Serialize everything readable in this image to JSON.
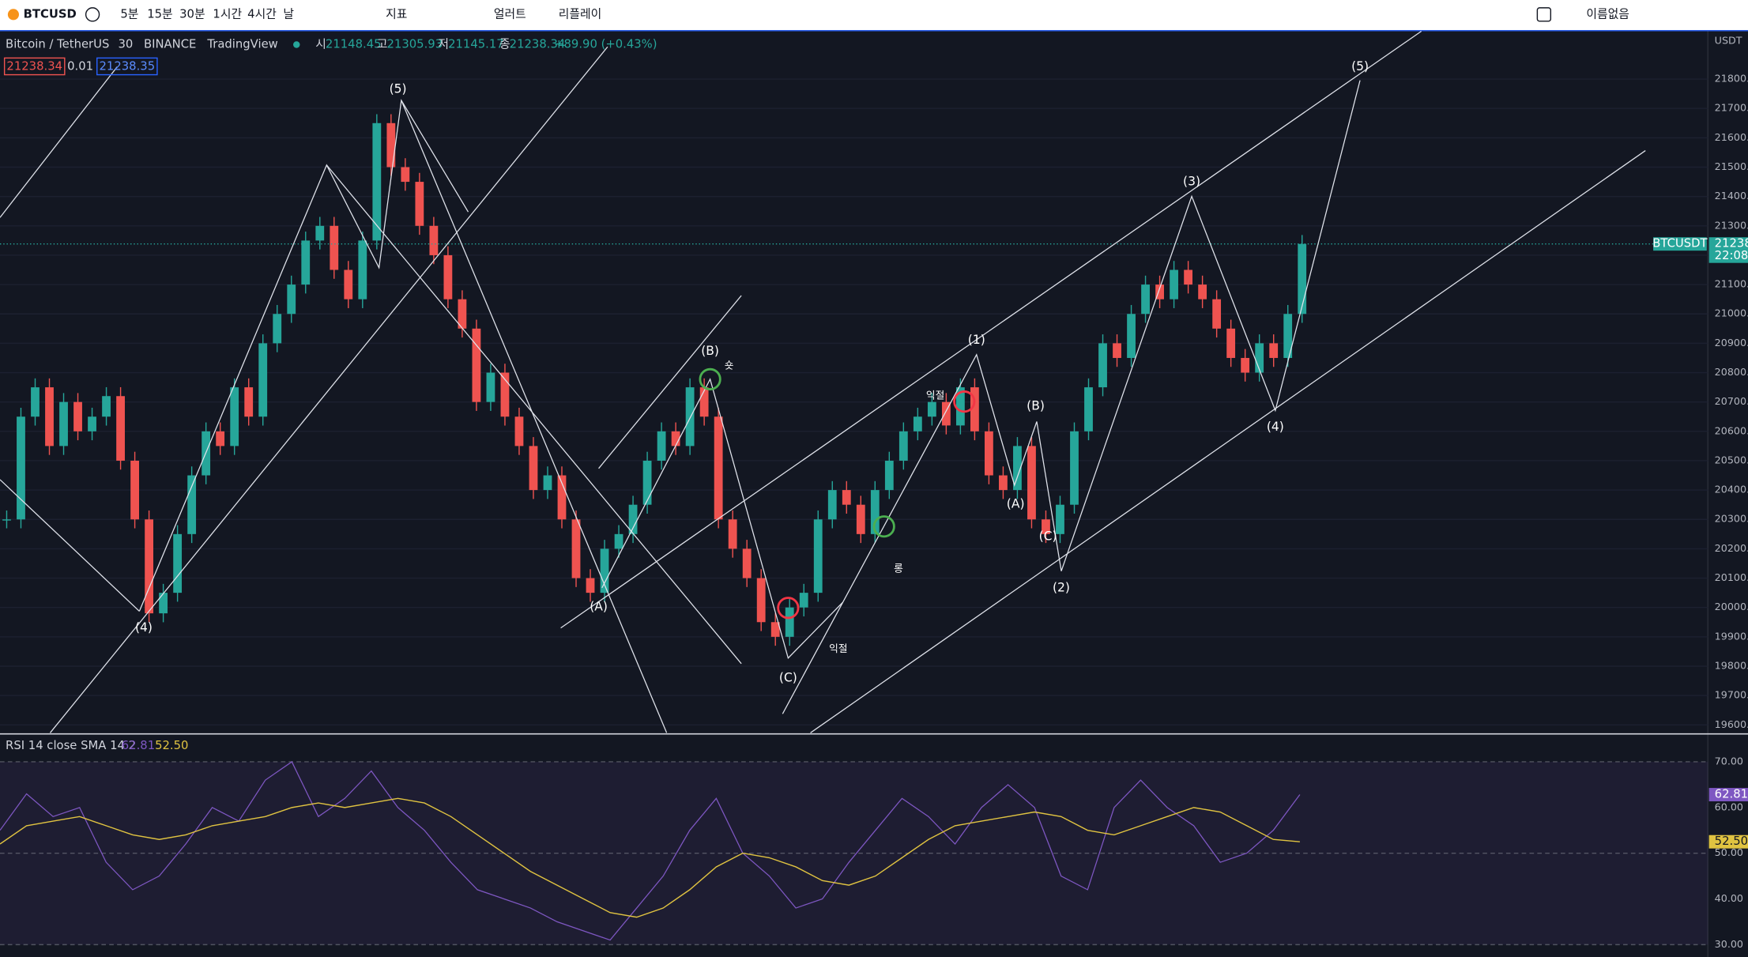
{
  "toolbar": {
    "symbol": "BTCUSD",
    "intervals": [
      "5분",
      "15분",
      "30분",
      "1시간",
      "4시간",
      "날"
    ],
    "indicators": "지표",
    "alert": "얼러트",
    "replay": "리플레이",
    "layout_name": "이름없음"
  },
  "legend": {
    "title": "Bitcoin / TetherUS",
    "interval": "30",
    "exchange": "BINANCE",
    "source": "TradingView",
    "ohlc": [
      {
        "label": "시",
        "value": "21148.45"
      },
      {
        "label": "고",
        "value": "21305.93"
      },
      {
        "label": "저",
        "value": "21145.17"
      },
      {
        "label": "종",
        "value": "21238.34"
      }
    ],
    "change": "+89.90 (+0.43%)",
    "sell": "21238.34",
    "spread": "0.01",
    "buy": "21238.35"
  },
  "price_chart": {
    "currency": "USDT",
    "ylim": [
      19573,
      21963
    ],
    "yticks": [
      {
        "value": 21800,
        "label": "21800.00"
      },
      {
        "value": 21700,
        "label": "21700.00"
      },
      {
        "value": 21600,
        "label": "21600.00"
      },
      {
        "value": 21500,
        "label": "21500.00"
      },
      {
        "value": 21400,
        "label": "21400.00"
      },
      {
        "value": 21300,
        "label": "21300.00"
      },
      {
        "value": 21200,
        "label": "21200.00"
      },
      {
        "value": 21100,
        "label": "21100.00"
      },
      {
        "value": 21000,
        "label": "21000.00"
      },
      {
        "value": 20900,
        "label": "20900.00"
      },
      {
        "value": 20800,
        "label": "20800.00"
      },
      {
        "value": 20700,
        "label": "20700.00"
      },
      {
        "value": 20600,
        "label": "20600.00"
      },
      {
        "value": 20500,
        "label": "20500.00"
      },
      {
        "value": 20400,
        "label": "20400.00"
      },
      {
        "value": 20300,
        "label": "20300.00"
      },
      {
        "value": 20200,
        "label": "20200.00"
      },
      {
        "value": 20100,
        "label": "20100.00"
      },
      {
        "value": 20000,
        "label": "20000.00"
      },
      {
        "value": 19900,
        "label": "19900.00"
      },
      {
        "value": 19800,
        "label": "19800.00"
      },
      {
        "value": 19700,
        "label": "19700.00"
      },
      {
        "value": 19600,
        "label": "19600.00"
      }
    ],
    "up_color": "#26a69a",
    "down_color": "#ef5350",
    "closes": [
      20300,
      20650,
      20750,
      20550,
      20700,
      20600,
      20650,
      20720,
      20500,
      20300,
      19980,
      20050,
      20250,
      20450,
      20600,
      20550,
      20750,
      20650,
      20900,
      21000,
      21100,
      21250,
      21300,
      21150,
      21050,
      21250,
      21650,
      21500,
      21450,
      21300,
      21200,
      21050,
      20950,
      20700,
      20800,
      20650,
      20550,
      20400,
      20450,
      20300,
      20100,
      20050,
      20200,
      20250,
      20350,
      20500,
      20600,
      20550,
      20750,
      20650,
      20300,
      20200,
      20100,
      19950,
      19900,
      20000,
      20050,
      20300,
      20400,
      20350,
      20250,
      20400,
      20500,
      20600,
      20650,
      20700,
      20620,
      20750,
      20600,
      20450,
      20400,
      20550,
      20300,
      20250,
      20350,
      20600,
      20750,
      20900,
      20850,
      21000,
      21100,
      21050,
      21150,
      21100,
      21050,
      20950,
      20850,
      20800,
      20900,
      20850,
      21000,
      21238.34
    ],
    "last": {
      "symbol": "BTCUSDT",
      "price": "21238.34",
      "countdown": "22:08"
    }
  },
  "waves": [
    "(5)",
    "(4)",
    "(A)",
    "(B)",
    "숏",
    "(C)",
    "익절",
    "롱",
    "익절",
    "(1)",
    "(B)",
    "(A)",
    "(C)",
    "(2)",
    "(3)",
    "(4)",
    "(5)"
  ],
  "rsi": {
    "title": "RSI 14 close SMA 14 2",
    "ylim": [
      27.3,
      75.6
    ],
    "yticks": [
      {
        "value": 70,
        "label": "70.00"
      },
      {
        "value": 60,
        "label": "60.00"
      },
      {
        "value": 50,
        "label": "50.00"
      },
      {
        "value": 40,
        "label": "40.00"
      },
      {
        "value": 30,
        "label": "30.00"
      }
    ],
    "series": [
      {
        "color": "#7e57c2",
        "values": [
          55,
          63,
          58,
          60,
          48,
          42,
          45,
          52,
          60,
          57,
          66,
          70,
          58,
          62,
          68,
          60,
          55,
          48,
          42,
          40,
          38,
          35,
          33,
          31,
          38,
          45,
          55,
          62,
          50,
          45,
          38,
          40,
          48,
          55,
          62,
          58,
          52,
          60,
          65,
          60,
          45,
          42,
          60,
          66,
          60,
          56,
          48,
          50,
          55,
          62.81
        ]
      },
      {
        "color": "#e0c341",
        "values": [
          52,
          56,
          57,
          58,
          56,
          54,
          53,
          54,
          56,
          57,
          58,
          60,
          61,
          60,
          61,
          62,
          61,
          58,
          54,
          50,
          46,
          43,
          40,
          37,
          36,
          38,
          42,
          47,
          50,
          49,
          47,
          44,
          43,
          45,
          49,
          53,
          56,
          57,
          58,
          59,
          58,
          55,
          54,
          56,
          58,
          60,
          59,
          56,
          53,
          52.5
        ]
      }
    ],
    "value_labels": [
      "62.81",
      "52.50"
    ]
  }
}
